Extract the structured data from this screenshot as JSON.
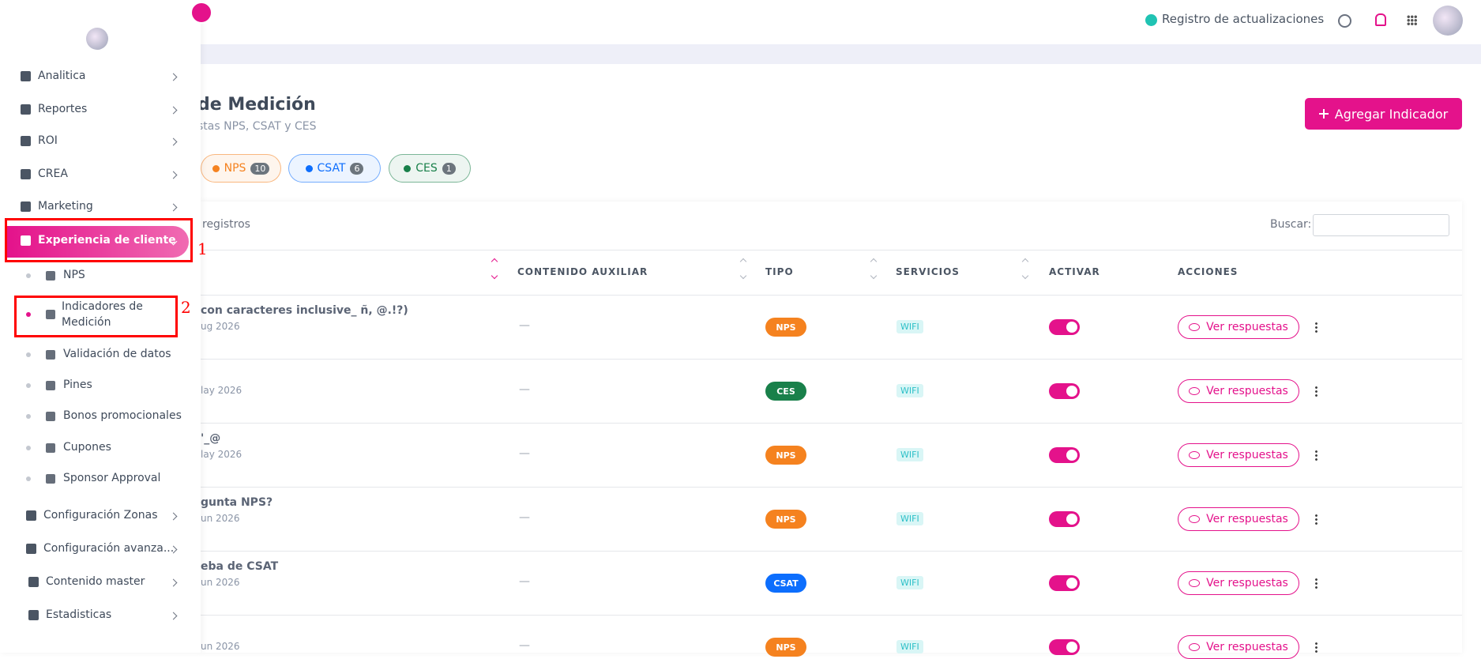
{
  "header": {
    "updates_link": "Registro de actualizaciones"
  },
  "sidebar": {
    "menu_top": [
      "Analitica",
      "Reportes",
      "ROI",
      "CREA",
      "Marketing",
      "Experiencia de cliente"
    ],
    "submenu": [
      "NPS",
      "Indicadores de Medición",
      "Validación de datos",
      "Pines",
      "Bonos promocionales",
      "Cupones",
      "Sponsor Approval"
    ],
    "menu_bottom": [
      "Configuración Zonas",
      "Configuración avanza...",
      "Contenido master",
      "Estadisticas"
    ]
  },
  "annotations": [
    "1",
    "2"
  ],
  "page": {
    "title": "de Medición",
    "subtitle": "stas NPS, CSAT y CES",
    "add_button": "Agregar Indicador",
    "filters": [
      {
        "label": "NPS",
        "count": 10,
        "color": "#f5821f"
      },
      {
        "label": "CSAT",
        "count": 6,
        "color": "#0d6efd"
      },
      {
        "label": "CES",
        "count": 1,
        "color": "#19804a"
      }
    ]
  },
  "table": {
    "length_text": "registros",
    "search_label": "Buscar:",
    "columns": [
      "CONTENIDO AUXILIAR",
      "TIPO",
      "SERVICIOS",
      "ACTIVAR",
      "ACCIONES"
    ],
    "rows": [
      {
        "title": "con caracteres inclusive_ ñ, @.!?)",
        "date": "ug 2026",
        "aux": "—",
        "type": "NPS",
        "service": "WIFI",
        "action": "Ver respuestas"
      },
      {
        "date": "lay 2026",
        "aux": "—",
        "type": "CES",
        "service": "WIFI",
        "action": "Ver respuestas"
      },
      {
        "title": "'_@",
        "date": "lay 2026",
        "aux": "—",
        "type": "NPS",
        "service": "WIFI",
        "action": "Ver respuestas"
      },
      {
        "title": "gunta NPS?",
        "date": "un 2026",
        "aux": "—",
        "type": "NPS",
        "service": "WIFI",
        "action": "Ver respuestas"
      },
      {
        "title": "eba de CSAT",
        "date": "un 2026",
        "aux": "—",
        "type": "CSAT",
        "service": "WIFI",
        "action": "Ver respuestas"
      },
      {
        "date": "un 2026",
        "aux": "—",
        "type": "NPS",
        "service": "WIFI",
        "action": "Ver respuestas"
      }
    ]
  }
}
